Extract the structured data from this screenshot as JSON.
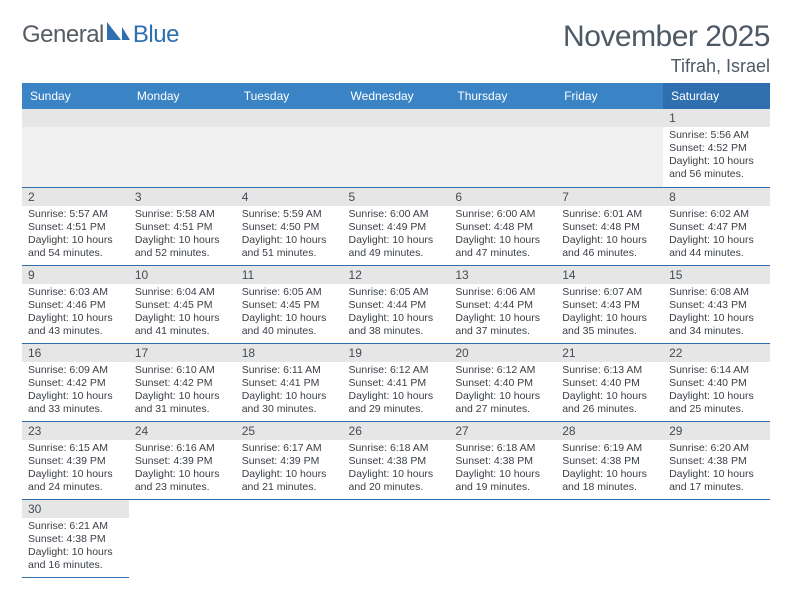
{
  "logo": {
    "part1": "General",
    "part2": "Blue"
  },
  "header": {
    "title": "November 2025",
    "location": "Tifrah, Israel"
  },
  "styling": {
    "header_bg": "#3a84c5",
    "header_sat_bg": "#2f6fb0",
    "daynum_bg": "#e6e6e6",
    "row_divider": "#2f6fb0",
    "title_color": "#4d5a66",
    "text_color": "#3a3f45",
    "title_fontsize_pt": 22,
    "location_fontsize_pt": 14,
    "dayhead_fontsize_pt": 9,
    "body_fontsize_pt": 8
  },
  "days_of_week": [
    "Sunday",
    "Monday",
    "Tuesday",
    "Wednesday",
    "Thursday",
    "Friday",
    "Saturday"
  ],
  "leading_empty": 6,
  "trailing_empty": 6,
  "days": [
    {
      "n": "1",
      "sunrise": "Sunrise: 5:56 AM",
      "sunset": "Sunset: 4:52 PM",
      "d1": "Daylight: 10 hours",
      "d2": "and 56 minutes."
    },
    {
      "n": "2",
      "sunrise": "Sunrise: 5:57 AM",
      "sunset": "Sunset: 4:51 PM",
      "d1": "Daylight: 10 hours",
      "d2": "and 54 minutes."
    },
    {
      "n": "3",
      "sunrise": "Sunrise: 5:58 AM",
      "sunset": "Sunset: 4:51 PM",
      "d1": "Daylight: 10 hours",
      "d2": "and 52 minutes."
    },
    {
      "n": "4",
      "sunrise": "Sunrise: 5:59 AM",
      "sunset": "Sunset: 4:50 PM",
      "d1": "Daylight: 10 hours",
      "d2": "and 51 minutes."
    },
    {
      "n": "5",
      "sunrise": "Sunrise: 6:00 AM",
      "sunset": "Sunset: 4:49 PM",
      "d1": "Daylight: 10 hours",
      "d2": "and 49 minutes."
    },
    {
      "n": "6",
      "sunrise": "Sunrise: 6:00 AM",
      "sunset": "Sunset: 4:48 PM",
      "d1": "Daylight: 10 hours",
      "d2": "and 47 minutes."
    },
    {
      "n": "7",
      "sunrise": "Sunrise: 6:01 AM",
      "sunset": "Sunset: 4:48 PM",
      "d1": "Daylight: 10 hours",
      "d2": "and 46 minutes."
    },
    {
      "n": "8",
      "sunrise": "Sunrise: 6:02 AM",
      "sunset": "Sunset: 4:47 PM",
      "d1": "Daylight: 10 hours",
      "d2": "and 44 minutes."
    },
    {
      "n": "9",
      "sunrise": "Sunrise: 6:03 AM",
      "sunset": "Sunset: 4:46 PM",
      "d1": "Daylight: 10 hours",
      "d2": "and 43 minutes."
    },
    {
      "n": "10",
      "sunrise": "Sunrise: 6:04 AM",
      "sunset": "Sunset: 4:45 PM",
      "d1": "Daylight: 10 hours",
      "d2": "and 41 minutes."
    },
    {
      "n": "11",
      "sunrise": "Sunrise: 6:05 AM",
      "sunset": "Sunset: 4:45 PM",
      "d1": "Daylight: 10 hours",
      "d2": "and 40 minutes."
    },
    {
      "n": "12",
      "sunrise": "Sunrise: 6:05 AM",
      "sunset": "Sunset: 4:44 PM",
      "d1": "Daylight: 10 hours",
      "d2": "and 38 minutes."
    },
    {
      "n": "13",
      "sunrise": "Sunrise: 6:06 AM",
      "sunset": "Sunset: 4:44 PM",
      "d1": "Daylight: 10 hours",
      "d2": "and 37 minutes."
    },
    {
      "n": "14",
      "sunrise": "Sunrise: 6:07 AM",
      "sunset": "Sunset: 4:43 PM",
      "d1": "Daylight: 10 hours",
      "d2": "and 35 minutes."
    },
    {
      "n": "15",
      "sunrise": "Sunrise: 6:08 AM",
      "sunset": "Sunset: 4:43 PM",
      "d1": "Daylight: 10 hours",
      "d2": "and 34 minutes."
    },
    {
      "n": "16",
      "sunrise": "Sunrise: 6:09 AM",
      "sunset": "Sunset: 4:42 PM",
      "d1": "Daylight: 10 hours",
      "d2": "and 33 minutes."
    },
    {
      "n": "17",
      "sunrise": "Sunrise: 6:10 AM",
      "sunset": "Sunset: 4:42 PM",
      "d1": "Daylight: 10 hours",
      "d2": "and 31 minutes."
    },
    {
      "n": "18",
      "sunrise": "Sunrise: 6:11 AM",
      "sunset": "Sunset: 4:41 PM",
      "d1": "Daylight: 10 hours",
      "d2": "and 30 minutes."
    },
    {
      "n": "19",
      "sunrise": "Sunrise: 6:12 AM",
      "sunset": "Sunset: 4:41 PM",
      "d1": "Daylight: 10 hours",
      "d2": "and 29 minutes."
    },
    {
      "n": "20",
      "sunrise": "Sunrise: 6:12 AM",
      "sunset": "Sunset: 4:40 PM",
      "d1": "Daylight: 10 hours",
      "d2": "and 27 minutes."
    },
    {
      "n": "21",
      "sunrise": "Sunrise: 6:13 AM",
      "sunset": "Sunset: 4:40 PM",
      "d1": "Daylight: 10 hours",
      "d2": "and 26 minutes."
    },
    {
      "n": "22",
      "sunrise": "Sunrise: 6:14 AM",
      "sunset": "Sunset: 4:40 PM",
      "d1": "Daylight: 10 hours",
      "d2": "and 25 minutes."
    },
    {
      "n": "23",
      "sunrise": "Sunrise: 6:15 AM",
      "sunset": "Sunset: 4:39 PM",
      "d1": "Daylight: 10 hours",
      "d2": "and 24 minutes."
    },
    {
      "n": "24",
      "sunrise": "Sunrise: 6:16 AM",
      "sunset": "Sunset: 4:39 PM",
      "d1": "Daylight: 10 hours",
      "d2": "and 23 minutes."
    },
    {
      "n": "25",
      "sunrise": "Sunrise: 6:17 AM",
      "sunset": "Sunset: 4:39 PM",
      "d1": "Daylight: 10 hours",
      "d2": "and 21 minutes."
    },
    {
      "n": "26",
      "sunrise": "Sunrise: 6:18 AM",
      "sunset": "Sunset: 4:38 PM",
      "d1": "Daylight: 10 hours",
      "d2": "and 20 minutes."
    },
    {
      "n": "27",
      "sunrise": "Sunrise: 6:18 AM",
      "sunset": "Sunset: 4:38 PM",
      "d1": "Daylight: 10 hours",
      "d2": "and 19 minutes."
    },
    {
      "n": "28",
      "sunrise": "Sunrise: 6:19 AM",
      "sunset": "Sunset: 4:38 PM",
      "d1": "Daylight: 10 hours",
      "d2": "and 18 minutes."
    },
    {
      "n": "29",
      "sunrise": "Sunrise: 6:20 AM",
      "sunset": "Sunset: 4:38 PM",
      "d1": "Daylight: 10 hours",
      "d2": "and 17 minutes."
    },
    {
      "n": "30",
      "sunrise": "Sunrise: 6:21 AM",
      "sunset": "Sunset: 4:38 PM",
      "d1": "Daylight: 10 hours",
      "d2": "and 16 minutes."
    }
  ]
}
